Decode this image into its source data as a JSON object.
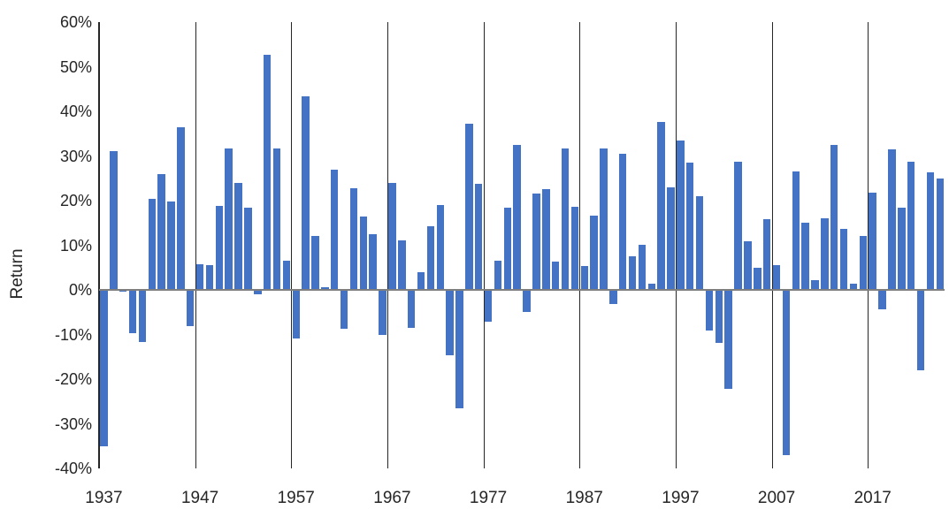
{
  "chart_data": {
    "type": "bar",
    "title": "",
    "xlabel": "",
    "ylabel": "Return",
    "legend": "none",
    "grid": "vertical lines at decade ticks",
    "ylim": [
      -40,
      60
    ],
    "y_tick_labels": [
      "60%",
      "50%",
      "40%",
      "30%",
      "20%",
      "10%",
      "0%",
      "-10%",
      "-20%",
      "-30%",
      "-40%"
    ],
    "y_tick_values": [
      60,
      50,
      40,
      30,
      20,
      10,
      0,
      -10,
      -20,
      -30,
      -40
    ],
    "x_tick_years": [
      1937,
      1947,
      1957,
      1967,
      1977,
      1987,
      1997,
      2007,
      2017
    ],
    "categories": [
      1937,
      1938,
      1939,
      1940,
      1941,
      1942,
      1943,
      1944,
      1945,
      1946,
      1947,
      1948,
      1949,
      1950,
      1951,
      1952,
      1953,
      1954,
      1955,
      1956,
      1957,
      1958,
      1959,
      1960,
      1961,
      1962,
      1963,
      1964,
      1965,
      1966,
      1967,
      1968,
      1969,
      1970,
      1971,
      1972,
      1973,
      1974,
      1975,
      1976,
      1977,
      1978,
      1979,
      1980,
      1981,
      1982,
      1983,
      1984,
      1985,
      1986,
      1987,
      1988,
      1989,
      1990,
      1991,
      1992,
      1993,
      1994,
      1995,
      1996,
      1997,
      1998,
      1999,
      2000,
      2001,
      2002,
      2003,
      2004,
      2005,
      2006,
      2007,
      2008,
      2009,
      2010,
      2011,
      2012,
      2013,
      2014,
      2015,
      2016,
      2017,
      2018,
      2019,
      2020,
      2021,
      2022,
      2023,
      2024
    ],
    "values": [
      -35.0,
      31.1,
      -0.4,
      -9.8,
      -11.6,
      20.3,
      25.9,
      19.8,
      36.4,
      -8.1,
      5.7,
      5.5,
      18.8,
      31.7,
      24.0,
      18.4,
      -1.0,
      52.6,
      31.6,
      6.6,
      -10.8,
      43.4,
      12.0,
      0.5,
      26.9,
      -8.7,
      22.8,
      16.5,
      12.5,
      -10.1,
      24.0,
      11.1,
      -8.5,
      4.0,
      14.3,
      19.0,
      -14.7,
      -26.5,
      37.2,
      23.8,
      -7.2,
      6.6,
      18.4,
      32.4,
      -4.9,
      21.5,
      22.6,
      6.3,
      31.7,
      18.7,
      5.3,
      16.6,
      31.7,
      -3.1,
      30.5,
      7.6,
      10.1,
      1.3,
      37.6,
      23.0,
      33.4,
      28.6,
      21.0,
      -9.1,
      -11.9,
      -22.1,
      28.7,
      10.9,
      4.9,
      15.8,
      5.5,
      -37.0,
      26.5,
      15.1,
      2.1,
      16.0,
      32.4,
      13.7,
      1.4,
      12.0,
      21.8,
      -4.4,
      31.5,
      18.4,
      28.7,
      -18.1,
      26.3,
      25.0
    ],
    "colors": {
      "bar": "#4472C4",
      "gridline": "#262626",
      "axis_line": "#262626",
      "zero_line": "#7F7F7F",
      "text": "#262626"
    }
  }
}
